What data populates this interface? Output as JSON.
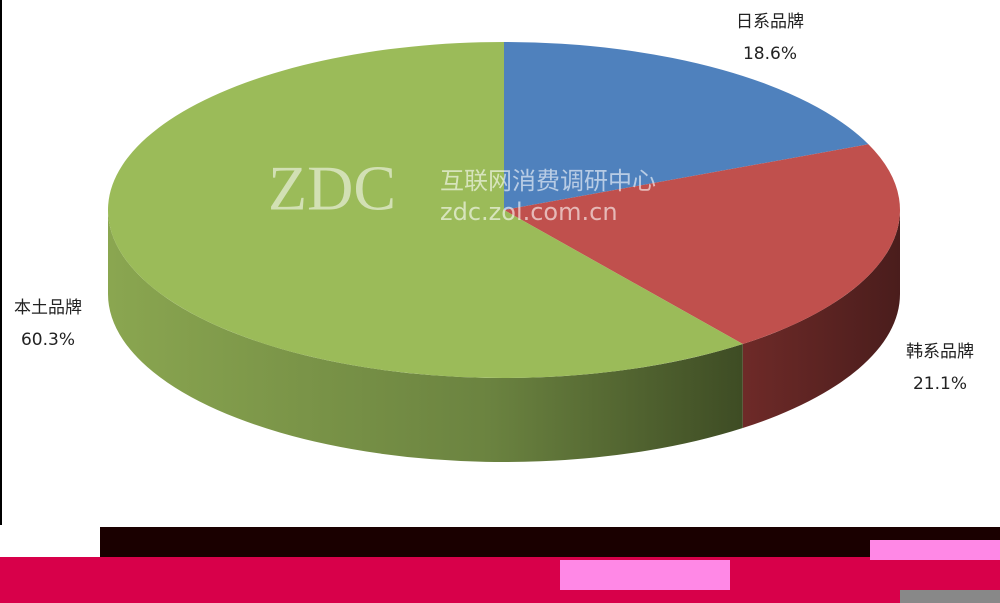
{
  "chart_data": {
    "type": "pie3d",
    "categories": [
      "日系品牌",
      "韩系品牌",
      "本土品牌"
    ],
    "values": [
      18.6,
      21.1,
      60.3
    ],
    "value_labels": [
      "18.6%",
      "21.1%",
      "60.3%"
    ],
    "colors": [
      "#4f81bd",
      "#c0504d",
      "#9bbb59"
    ],
    "watermark": {
      "logo": "ZDC",
      "name": "互联网消费调研中心",
      "url": "zdc.zol.com.cn"
    }
  }
}
